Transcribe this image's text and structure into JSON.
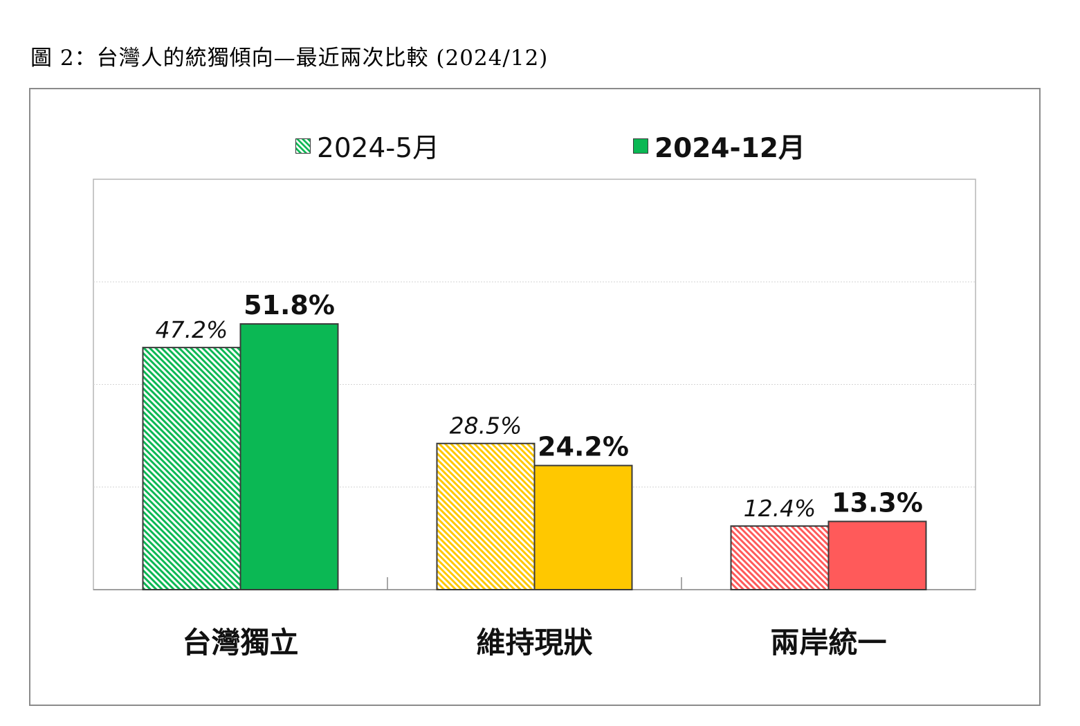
{
  "page_title": "圖 2：台灣人的統獨傾向—最近兩次比較 (2024/12)",
  "chart_data": {
    "type": "bar",
    "title": "",
    "xlabel": "",
    "ylabel": "",
    "ylim": [
      0,
      80
    ],
    "grid": true,
    "legend_position": "top",
    "categories": [
      "台灣獨立",
      "維持現狀",
      "兩岸統一"
    ],
    "category_colors": [
      "#0bb854",
      "#ffc800",
      "#ff5a5a"
    ],
    "series": [
      {
        "name": "2024-5月",
        "pattern": "hatched",
        "values": [
          47.2,
          28.5,
          12.4
        ],
        "labels": [
          "47.2%",
          "28.5%",
          "12.4%"
        ]
      },
      {
        "name": "2024-12月",
        "pattern": "solid",
        "values": [
          51.8,
          24.2,
          13.3
        ],
        "labels": [
          "51.8%",
          "24.2%",
          "13.3%"
        ]
      }
    ]
  }
}
